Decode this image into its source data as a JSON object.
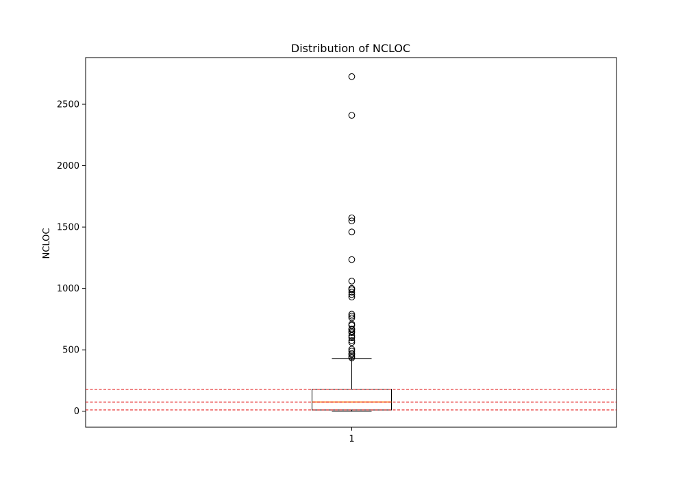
{
  "chart_data": {
    "type": "box",
    "title": "Distribution of NCLOC",
    "xlabel": "",
    "ylabel": "NCLOC",
    "categories": [
      "1"
    ],
    "ylim": [
      -130,
      2880
    ],
    "yticks": [
      0,
      500,
      1000,
      1500,
      2000,
      2500
    ],
    "grid": false,
    "box": {
      "q1": 10,
      "median": 75,
      "q3": 180,
      "whisker_low": 0,
      "whisker_high": 430
    },
    "outliers": [
      435,
      445,
      460,
      470,
      490,
      505,
      560,
      575,
      600,
      615,
      640,
      650,
      665,
      670,
      700,
      710,
      760,
      775,
      790,
      930,
      950,
      970,
      990,
      1000,
      1060,
      1235,
      1460,
      1550,
      1575,
      2410,
      2725
    ],
    "reference_lines": [
      {
        "value": 10,
        "style": "dashed",
        "color": "#e00000"
      },
      {
        "value": 75,
        "style": "dashed",
        "color": "#e00000"
      },
      {
        "value": 180,
        "style": "dashed",
        "color": "#e00000"
      }
    ],
    "colors": {
      "box": "#000000",
      "median": "#ff7f0e",
      "reference": "#e00000",
      "outlier": "#000000"
    }
  }
}
